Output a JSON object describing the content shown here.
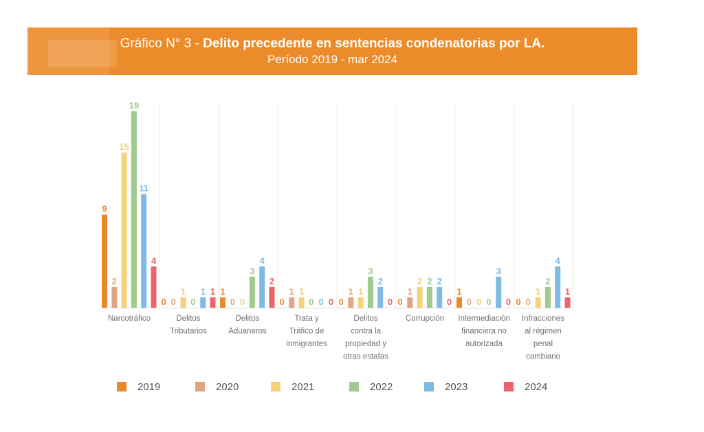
{
  "header": {
    "title_prefix": "Gráfico N° 3 - ",
    "title_bold": "Delito precedente en sentencias condenatorias por LA.",
    "subtitle": "Período 2019 - mar 2024"
  },
  "colors": {
    "banner": "#ec8b2a",
    "series": [
      "#e8892c",
      "#e0a485",
      "#f5d27a",
      "#9fcb8e",
      "#7ebae3",
      "#e8656e"
    ]
  },
  "chart_data": {
    "type": "bar",
    "title": "Delito precedente en sentencias condenatorias por LA.",
    "subtitle": "Período 2019 - mar 2024",
    "xlabel": "",
    "ylabel": "",
    "ylim": [
      0,
      19
    ],
    "grid": false,
    "legend_position": "bottom",
    "categories": [
      [
        "Narcotráfico"
      ],
      [
        "Delitos",
        "Tributarios"
      ],
      [
        "Delitos",
        "Aduaneros"
      ],
      [
        "Trata y",
        "Tráfico de",
        "inmigrantes"
      ],
      [
        "Delitos",
        "contra la",
        "propiedad y",
        "otras estafas"
      ],
      [
        "Corrupción"
      ],
      [
        "Intermediación",
        "financiera no",
        "autorizada"
      ],
      [
        "Infracciones",
        "al régimen",
        "penal",
        "cambiario"
      ]
    ],
    "series": [
      {
        "name": "2019",
        "values": [
          9,
          0,
          1,
          0,
          0,
          0,
          1,
          0
        ]
      },
      {
        "name": "2020",
        "values": [
          2,
          0,
          0,
          1,
          1,
          1,
          0,
          0
        ]
      },
      {
        "name": "2021",
        "values": [
          15,
          1,
          0,
          1,
          1,
          2,
          0,
          1
        ]
      },
      {
        "name": "2022",
        "values": [
          19,
          0,
          3,
          0,
          3,
          2,
          0,
          2
        ]
      },
      {
        "name": "2023",
        "values": [
          11,
          1,
          4,
          0,
          2,
          2,
          3,
          4
        ]
      },
      {
        "name": "2024",
        "values": [
          4,
          1,
          2,
          0,
          0,
          0,
          0,
          1
        ]
      }
    ]
  }
}
